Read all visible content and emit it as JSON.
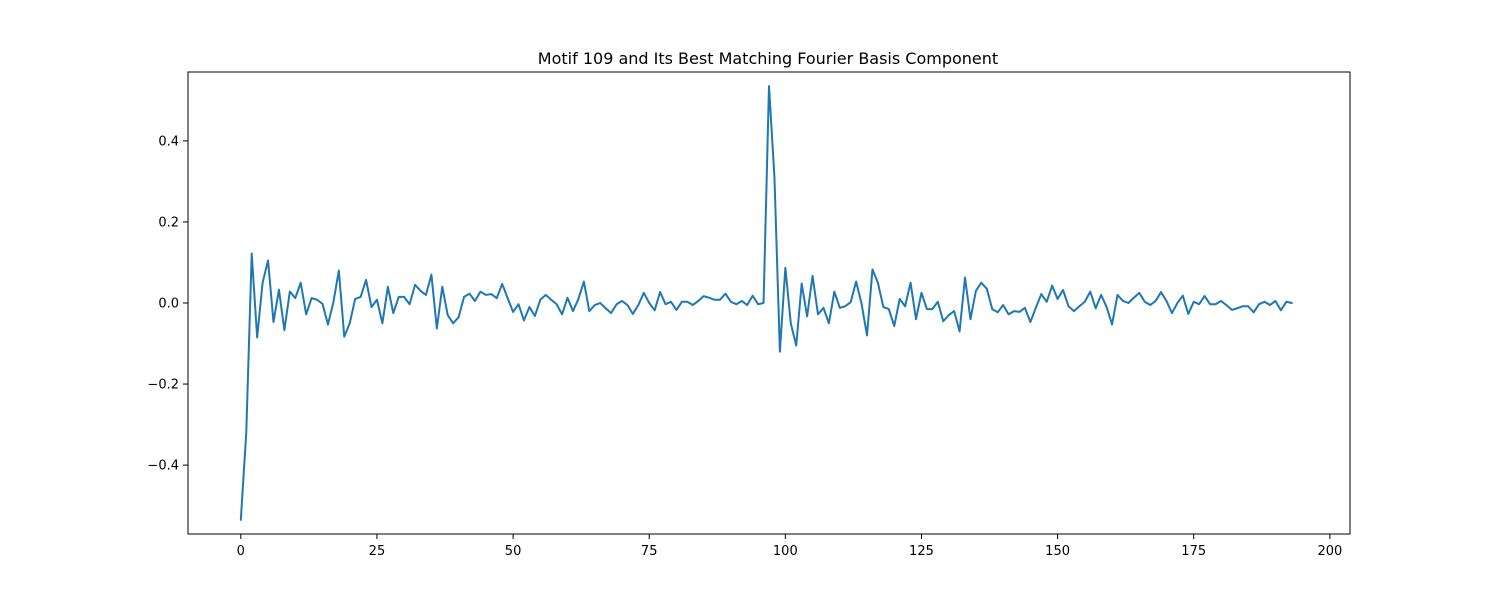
{
  "chart_data": {
    "type": "line",
    "title": "Motif 109 and Its Best Matching Fourier Basis Component",
    "xlabel": "",
    "ylabel": "",
    "xlim": [
      -9.7,
      203.7
    ],
    "ylim": [
      -0.57,
      0.57
    ],
    "grid": false,
    "xticks": [
      0,
      25,
      50,
      75,
      100,
      125,
      150,
      175,
      200
    ],
    "yticks": [
      -0.4,
      -0.2,
      0.0,
      0.2,
      0.4
    ],
    "xtick_labels": [
      "0",
      "25",
      "50",
      "75",
      "100",
      "125",
      "150",
      "175",
      "200"
    ],
    "ytick_labels": [
      "−0.4",
      "−0.2",
      "0.0",
      "0.2",
      "0.4"
    ],
    "series": [
      {
        "color": "#1f77b4",
        "x_start": 0,
        "x_step": 1,
        "values": [
          -0.535,
          -0.32,
          0.122,
          -0.085,
          0.05,
          0.105,
          -0.047,
          0.033,
          -0.067,
          0.028,
          0.012,
          0.05,
          -0.028,
          0.012,
          0.008,
          -0.002,
          -0.053,
          0.002,
          0.08,
          -0.083,
          -0.05,
          0.01,
          0.015,
          0.057,
          -0.01,
          0.008,
          -0.05,
          0.04,
          -0.025,
          0.015,
          0.015,
          -0.003,
          0.045,
          0.03,
          0.02,
          0.07,
          -0.063,
          0.04,
          -0.03,
          -0.05,
          -0.035,
          0.015,
          0.023,
          0.005,
          0.028,
          0.02,
          0.022,
          0.012,
          0.047,
          0.012,
          -0.022,
          -0.003,
          -0.043,
          -0.01,
          -0.032,
          0.008,
          0.02,
          0.008,
          -0.003,
          -0.028,
          0.013,
          -0.02,
          0.01,
          0.053,
          -0.02,
          -0.005,
          0.0,
          -0.013,
          -0.025,
          -0.003,
          0.005,
          -0.005,
          -0.027,
          -0.005,
          0.025,
          0.0,
          -0.018,
          0.027,
          -0.003,
          0.003,
          -0.017,
          0.003,
          0.003,
          -0.005,
          0.005,
          0.017,
          0.013,
          0.008,
          0.008,
          0.023,
          0.003,
          -0.003,
          0.005,
          -0.005,
          0.018,
          -0.003,
          0.0,
          0.535,
          0.31,
          -0.12,
          0.087,
          -0.05,
          -0.105,
          0.048,
          -0.033,
          0.067,
          -0.028,
          -0.012,
          -0.05,
          0.028,
          -0.012,
          -0.008,
          0.002,
          0.053,
          -0.002,
          -0.08,
          0.083,
          0.05,
          -0.01,
          -0.015,
          -0.057,
          0.01,
          -0.008,
          0.05,
          -0.04,
          0.025,
          -0.015,
          -0.015,
          0.003,
          -0.045,
          -0.03,
          -0.02,
          -0.07,
          0.063,
          -0.04,
          0.03,
          0.05,
          0.035,
          -0.015,
          -0.023,
          -0.005,
          -0.028,
          -0.02,
          -0.022,
          -0.012,
          -0.047,
          -0.012,
          0.022,
          0.003,
          0.043,
          0.01,
          0.032,
          -0.008,
          -0.02,
          -0.008,
          0.003,
          0.028,
          -0.013,
          0.02,
          -0.01,
          -0.053,
          0.02,
          0.005,
          0.0,
          0.013,
          0.025,
          0.003,
          -0.005,
          0.005,
          0.027,
          0.005,
          -0.025,
          0.0,
          0.018,
          -0.027,
          0.003,
          -0.003,
          0.017,
          -0.003,
          -0.003,
          0.005,
          -0.005,
          -0.017,
          -0.013,
          -0.008,
          -0.008,
          -0.023,
          -0.003,
          0.003,
          -0.005,
          0.005,
          -0.018,
          0.003,
          0.0
        ]
      }
    ]
  }
}
